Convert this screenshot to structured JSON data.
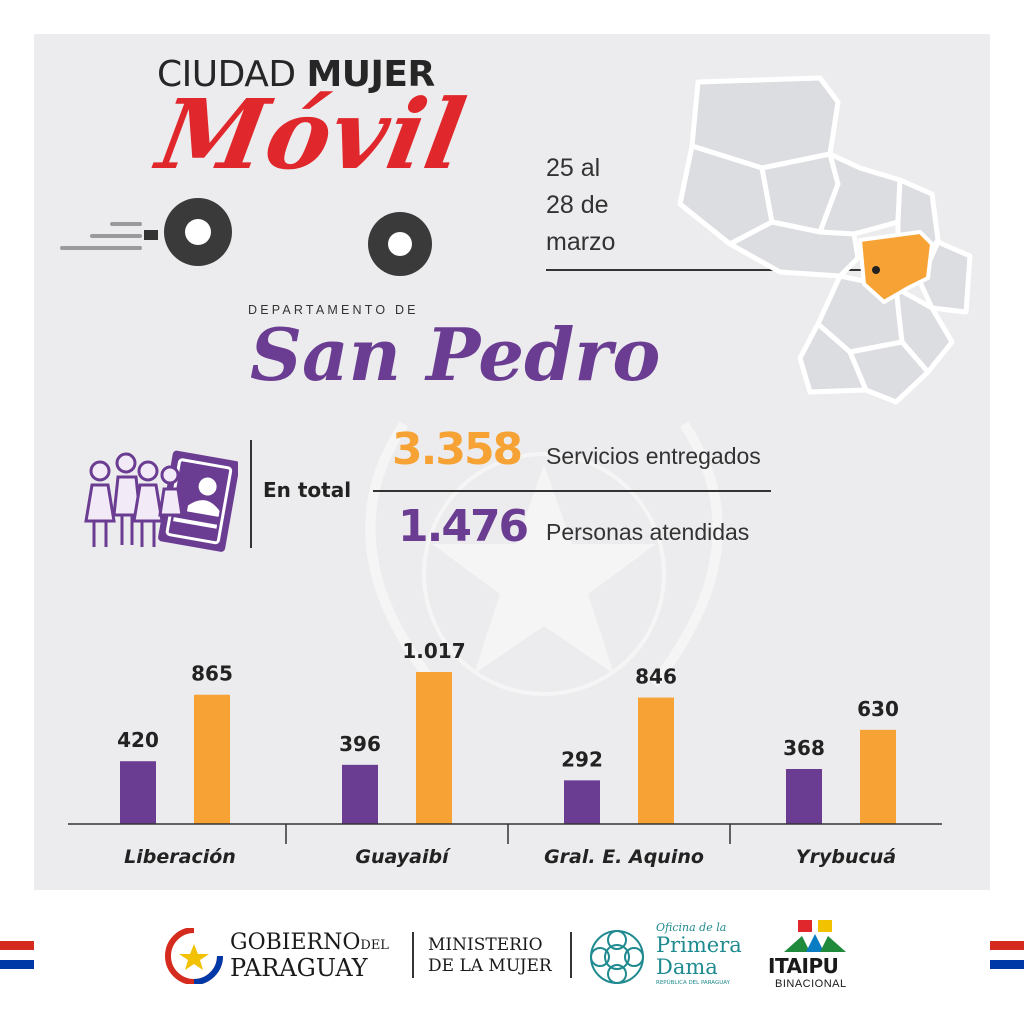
{
  "header": {
    "logo_line1_a": "CIUDAD ",
    "logo_line1_b": "MUJER",
    "logo_line2": "Móvil",
    "dates": [
      "25 al",
      "28 de",
      "marzo"
    ]
  },
  "department": {
    "label": "DEPARTAMENTO DE",
    "name": "San Pedro",
    "highlight_color": "#f7a234"
  },
  "totals": {
    "label": "En total",
    "services_value": "3.358",
    "services_label": "Servicios entregados",
    "people_value": "1.476",
    "people_label": "Personas atendidas"
  },
  "colors": {
    "purple": "#6b3d92",
    "orange": "#f7a234",
    "red": "#e0282c"
  },
  "chart_data": {
    "type": "bar",
    "categories": [
      "Liberación",
      "Guayaibí",
      "Gral. E. Aquino",
      "Yrybucuá"
    ],
    "series": [
      {
        "color": "#6b3d92",
        "values": [
          420,
          396,
          292,
          368
        ],
        "labels": [
          "420",
          "396",
          "292",
          "368"
        ]
      },
      {
        "color": "#f7a234",
        "values": [
          865,
          1017,
          846,
          630
        ],
        "labels": [
          "865",
          "1.017",
          "846",
          "630"
        ]
      }
    ],
    "ylim": [
      0,
      1017
    ]
  },
  "footer": {
    "gobierno_line1": "GOBIERNO",
    "gobierno_small": "DEL",
    "gobierno_line2": "PARAGUAY",
    "ministerio_line1": "MINISTERIO",
    "ministerio_line2": "DE LA MUJER",
    "primera_dama_small": "Oficina de la",
    "primera_dama_big1": "Primera",
    "primera_dama_big2": "Dama",
    "primera_dama_sub": "REPÚBLICA DEL PARAGUAY",
    "itaipu": "ITAIPU",
    "itaipu_sub": "BINACIONAL"
  }
}
